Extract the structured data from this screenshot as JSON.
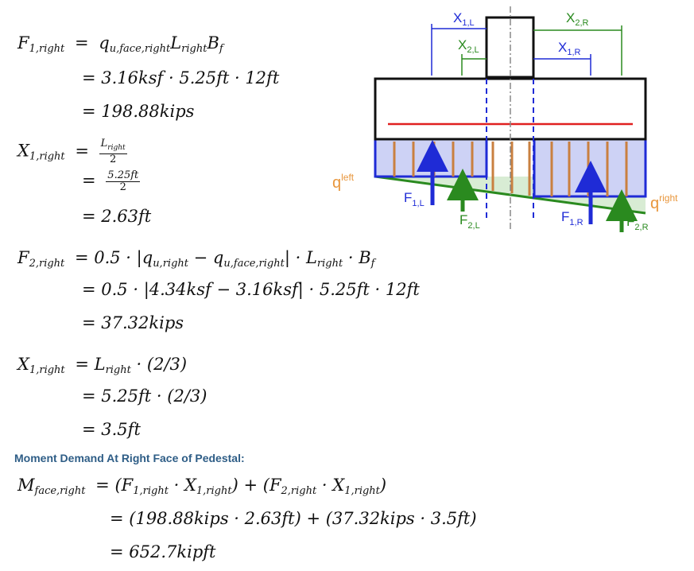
{
  "heading": "Moment Demand At Right Face of Pedestal:",
  "f1": {
    "lhs": "F",
    "lhs_sub": "1,right",
    "eq": "=",
    "r1_q": "q",
    "r1_q_sub": "u,face,right",
    "r1_L": "L",
    "r1_L_sub": "right",
    "r1_B": "B",
    "r1_B_sub": "f",
    "r2": "= 3.16ksf · 5.25ft · 12ft",
    "r3": "= 198.88kips"
  },
  "x1a": {
    "lhs": "X",
    "lhs_sub": "1,right",
    "eq": "=",
    "frac1_num": "L",
    "frac1_num_sub": "right",
    "frac1_den": "2",
    "eq2": "=",
    "frac2_num": "5.25ft",
    "frac2_den": "2",
    "r3": "= 2.63ft"
  },
  "f2": {
    "lhs": "F",
    "lhs_sub": "2,right",
    "r1_a": "= 0.5 · |q",
    "r1_sub1": "u,right",
    "r1_b": " − q",
    "r1_sub2": "u,face,right",
    "r1_c": "| · L",
    "r1_sub3": "right",
    "r1_d": " · B",
    "r1_sub4": "f",
    "r2": "= 0.5 · |4.34ksf − 3.16ksf| · 5.25ft · 12ft",
    "r3": "= 37.32kips"
  },
  "x1b": {
    "lhs": "X",
    "lhs_sub": "1,right",
    "r1_a": "= L",
    "r1_sub": "right",
    "r1_b": " · (2/3)",
    "r2": "= 5.25ft · (2/3)",
    "r3": "= 3.5ft"
  },
  "m": {
    "lhs": "M",
    "lhs_sub": "face,right",
    "r1_a": "= (F",
    "r1_s1": "1,right",
    "r1_b": " · X",
    "r1_s2": "1,right",
    "r1_c": ") + (F",
    "r1_s3": "2,right",
    "r1_d": " · X",
    "r1_s4": "1,right",
    "r1_e": ")",
    "r2": "= (198.88kips · 2.63ft) + (37.32kips · 3.5ft)",
    "r3": "= 652.7kipft"
  },
  "diagram": {
    "x1l": "X",
    "x1l_sub": "1,L",
    "x2r": "X",
    "x2r_sub": "2,R",
    "x2l": "X",
    "x2l_sub": "2,L",
    "x1r": "X",
    "x1r_sub": "1,R",
    "qleft": "q",
    "qleft_sup": "left",
    "qright": "q",
    "qright_sup": "right",
    "f1l": "F",
    "f1l_sub": "1,L",
    "f2l": "F",
    "f2l_sub": "2,L",
    "f1r": "F",
    "f1r_sub": "1,R",
    "f2r": "F",
    "f2r_sub": "2,R",
    "colors": {
      "blue": "#1f2bd6",
      "green": "#2a8a1f",
      "orange": "#e8963c",
      "red": "#e02020"
    }
  }
}
